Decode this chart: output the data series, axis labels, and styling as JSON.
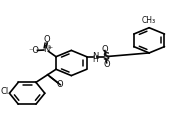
{
  "bg_color": "#ffffff",
  "line_color": "#000000",
  "line_width": 1.2,
  "font_size": 5.5,
  "figsize": [
    1.81,
    1.26
  ],
  "dpi": 100,
  "ring_r": 0.1,
  "rings": {
    "central": [
      0.38,
      0.5
    ],
    "chloro": [
      0.13,
      0.26
    ],
    "tosyl": [
      0.82,
      0.68
    ]
  }
}
